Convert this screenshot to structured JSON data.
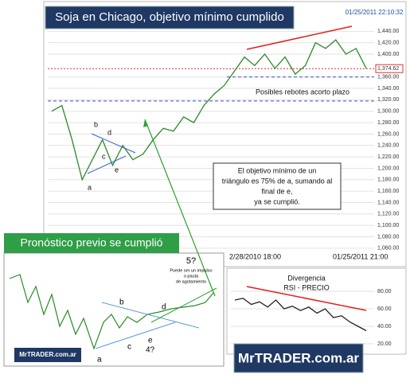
{
  "chart_data": [
    {
      "type": "line",
      "title": "Soja en Chicago, objetivo mínimo cumplido",
      "timestamp": "01/25/2011 22:10:32",
      "color": "#2a8a2a",
      "values": [
        1300,
        1310,
        1250,
        1180,
        1215,
        1250,
        1205,
        1240,
        1215,
        1225,
        1250,
        1270,
        1265,
        1290,
        1280,
        1310,
        1330,
        1345,
        1370,
        1395,
        1380,
        1400,
        1375,
        1395,
        1365,
        1380,
        1420,
        1410,
        1425,
        1400,
        1410,
        1375
      ],
      "ylim": [
        1050,
        1460
      ],
      "yticks": [
        {
          "value": 1060,
          "label": "1,060.00"
        },
        {
          "value": 1080,
          "label": "1,080.00"
        },
        {
          "value": 1100,
          "label": "1,100.00"
        },
        {
          "value": 1120,
          "label": "1,120.00"
        },
        {
          "value": 1140,
          "label": "1,140.00"
        },
        {
          "value": 1160,
          "label": "1,160.00"
        },
        {
          "value": 1180,
          "label": "1,180.00"
        },
        {
          "value": 1200,
          "label": "1,200.00"
        },
        {
          "value": 1220,
          "label": "1,220.00"
        },
        {
          "value": 1240,
          "label": "1,240.00"
        },
        {
          "value": 1260,
          "label": "1,260.00"
        },
        {
          "value": 1280,
          "label": "1,280.00"
        },
        {
          "value": 1300,
          "label": "1,300.00"
        },
        {
          "value": 1320,
          "label": "1,320.00"
        },
        {
          "value": 1340,
          "label": "1,340.00"
        },
        {
          "value": 1360,
          "label": "1,360.00"
        },
        {
          "value": 1400,
          "label": "1,400.00"
        },
        {
          "value": 1420,
          "label": "1,420.00"
        },
        {
          "value": 1440,
          "label": "1,440.00"
        }
      ],
      "current_price": {
        "value": 1374.62,
        "label": "1,374.62"
      },
      "support_levels": [
        1360,
        1318
      ],
      "grid": true,
      "x_labels": [
        "2/28/2010 18:00",
        "01/25/2011 21:00"
      ],
      "annotations": [
        "a",
        "b",
        "c",
        "d",
        "e",
        "Posibles rebotes acorto plazo"
      ],
      "note": [
        "El objetivo mínimo de un",
        "triángulo es 75% de a, sumando al",
        "final de e,",
        "ya se cumplió."
      ]
    },
    {
      "type": "line",
      "title": [
        "Divergencia",
        "RSI - PRECIO"
      ],
      "color": "#222",
      "values": [
        70,
        72,
        65,
        68,
        62,
        70,
        60,
        63,
        58,
        62,
        55,
        60,
        50,
        52,
        45,
        40,
        35
      ],
      "ylim": [
        10,
        90
      ],
      "yticks": [
        {
          "value": 20,
          "label": "20.00"
        },
        {
          "value": 40,
          "label": "40.00"
        },
        {
          "value": 60,
          "label": "60.00"
        },
        {
          "value": 80,
          "label": "80.00"
        }
      ],
      "grid": true
    }
  ],
  "inset": {
    "title": "Pronóstico previo se cumplió",
    "labels": [
      "5?",
      "b",
      "d",
      "c",
      "e",
      "4?",
      "a"
    ],
    "note": [
      "Puede ser un impulso",
      "o pauta",
      "de agotamiento"
    ],
    "brand": "MrTRADER.com.ar"
  },
  "brand": "MrTRADER.com.ar"
}
